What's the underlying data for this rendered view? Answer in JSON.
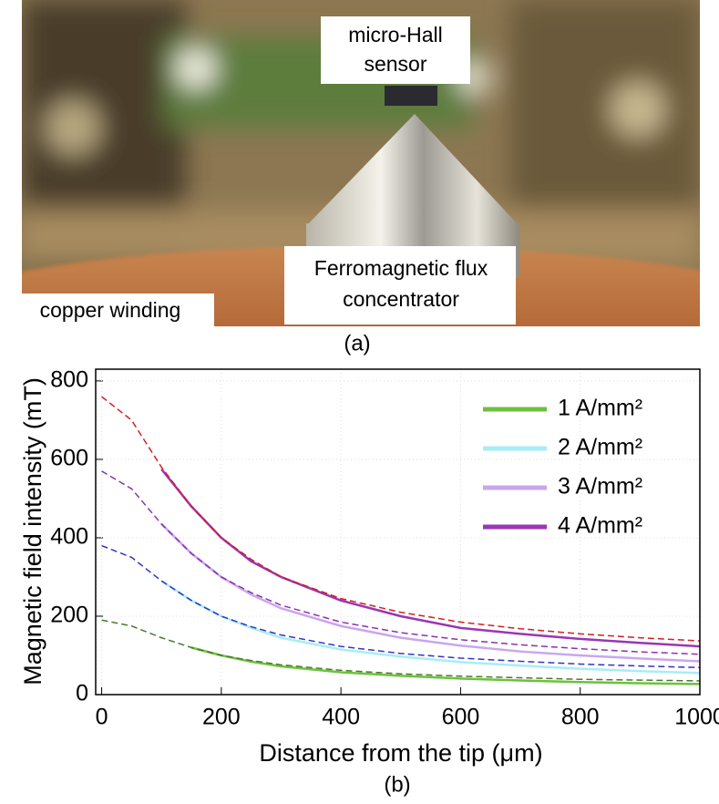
{
  "photo": {
    "caption": "(a)",
    "sensor_label": [
      "micro-Hall",
      "sensor"
    ],
    "concentrator_label": [
      "Ferromagnetic flux",
      "concentrator"
    ],
    "winding_label": "copper winding"
  },
  "chart_data": {
    "type": "line",
    "caption": "(b)",
    "x_label": "Distance from the tip (μm)",
    "y_label": "Magnetic field intensity (mT)",
    "x": [
      0,
      50,
      100,
      150,
      200,
      250,
      300,
      400,
      500,
      600,
      700,
      800,
      900,
      1000
    ],
    "series": [
      {
        "name": "1 A/mm²",
        "color": "#6cc23e",
        "dash": false,
        "values": [
          null,
          null,
          null,
          120,
          100,
          84,
          72,
          57,
          48,
          41,
          36,
          32,
          29,
          27
        ]
      },
      {
        "name": "2 A/mm²",
        "color": "#a6eef4",
        "dash": false,
        "values": [
          null,
          null,
          290,
          240,
          200,
          170,
          145,
          115,
          97,
          83,
          74,
          66,
          60,
          55
        ]
      },
      {
        "name": "3 A/mm²",
        "color": "#c9a6ee",
        "dash": false,
        "values": [
          null,
          null,
          435,
          360,
          300,
          255,
          220,
          175,
          145,
          125,
          110,
          100,
          92,
          85
        ]
      },
      {
        "name": "4 A/mm²",
        "color": "#9a36b4",
        "dash": false,
        "values": [
          null,
          null,
          575,
          480,
          400,
          340,
          300,
          240,
          200,
          170,
          155,
          142,
          132,
          123
        ]
      },
      {
        "color": "#4a7a2a",
        "dash": true,
        "values": [
          190,
          175,
          145,
          120,
          100,
          87,
          76,
          62,
          53,
          47,
          43,
          39,
          37,
          35
        ]
      },
      {
        "color": "#3434c4",
        "dash": true,
        "values": [
          380,
          350,
          290,
          240,
          200,
          173,
          152,
          123,
          105,
          93,
          85,
          78,
          73,
          69
        ]
      },
      {
        "color": "#9030b0",
        "dash": true,
        "values": [
          570,
          525,
          435,
          360,
          300,
          260,
          228,
          185,
          158,
          140,
          127,
          117,
          109,
          103
        ]
      },
      {
        "color": "#d02020",
        "dash": true,
        "values": [
          760,
          700,
          580,
          480,
          400,
          345,
          300,
          245,
          210,
          185,
          168,
          155,
          145,
          137
        ]
      }
    ],
    "xlim": [
      -10,
      1000
    ],
    "ylim": [
      0,
      830
    ],
    "xticks": [
      0,
      200,
      400,
      600,
      800,
      1000
    ],
    "yticks": [
      0,
      200,
      400,
      600,
      800
    ],
    "grid": true,
    "legend": "upper right"
  }
}
